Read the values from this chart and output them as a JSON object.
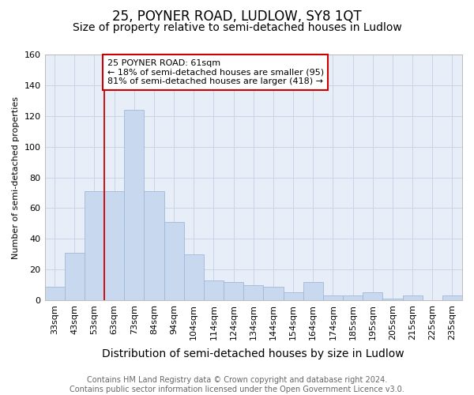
{
  "title": "25, POYNER ROAD, LUDLOW, SY8 1QT",
  "subtitle": "Size of property relative to semi-detached houses in Ludlow",
  "xlabel": "Distribution of semi-detached houses by size in Ludlow",
  "ylabel": "Number of semi-detached properties",
  "categories": [
    "33sqm",
    "43sqm",
    "53sqm",
    "63sqm",
    "73sqm",
    "84sqm",
    "94sqm",
    "104sqm",
    "114sqm",
    "124sqm",
    "134sqm",
    "144sqm",
    "154sqm",
    "164sqm",
    "174sqm",
    "185sqm",
    "195sqm",
    "205sqm",
    "215sqm",
    "225sqm",
    "235sqm"
  ],
  "values": [
    9,
    31,
    71,
    71,
    124,
    71,
    51,
    30,
    13,
    12,
    10,
    9,
    5,
    12,
    3,
    3,
    5,
    1,
    3,
    0,
    3
  ],
  "bar_color": "#c8d8ee",
  "bar_edge_color": "#a0b8d8",
  "vline_color": "#cc0000",
  "vline_index": 3,
  "annotation_text": "25 POYNER ROAD: 61sqm\n← 18% of semi-detached houses are smaller (95)\n81% of semi-detached houses are larger (418) →",
  "annotation_box_facecolor": "#ffffff",
  "annotation_box_edgecolor": "#cc0000",
  "ylim": [
    0,
    160
  ],
  "yticks": [
    0,
    20,
    40,
    60,
    80,
    100,
    120,
    140,
    160
  ],
  "grid_color": "#c8d4e8",
  "background_color": "#e8eef8",
  "footer_text": "Contains HM Land Registry data © Crown copyright and database right 2024.\nContains public sector information licensed under the Open Government Licence v3.0.",
  "title_fontsize": 12,
  "subtitle_fontsize": 10,
  "xlabel_fontsize": 10,
  "ylabel_fontsize": 8,
  "tick_fontsize": 8,
  "annotation_fontsize": 8,
  "footer_fontsize": 7
}
